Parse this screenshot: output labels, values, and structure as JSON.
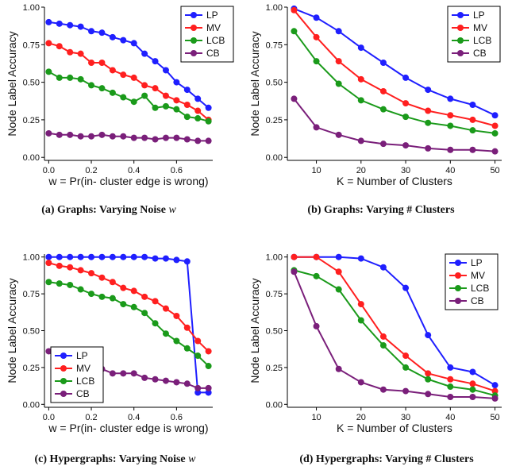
{
  "chart_data": [
    {
      "type": "line",
      "caption": "(a) Graphs: Varying Noise",
      "caption_var": "w",
      "xlabel": "w = Pr(in- cluster edge is wrong)",
      "ylabel": "Node Label Accuracy",
      "xlim": [
        -0.02,
        0.77
      ],
      "ylim": [
        -0.02,
        1.0
      ],
      "xticks": [
        0.0,
        0.2,
        0.4,
        0.6
      ],
      "xtick_labels": [
        "0.0",
        "0.2",
        "0.4",
        "0.6"
      ],
      "yticks": [
        0.0,
        0.25,
        0.5,
        0.75,
        1.0
      ],
      "ytick_labels": [
        "0.00",
        "0.25",
        "0.50",
        "0.75",
        "1.00"
      ],
      "legend_position": "top-right",
      "x": [
        0.0,
        0.05,
        0.1,
        0.15,
        0.2,
        0.25,
        0.3,
        0.35,
        0.4,
        0.45,
        0.5,
        0.55,
        0.6,
        0.65,
        0.7,
        0.75
      ],
      "series": [
        {
          "name": "LP",
          "color": "#1f1fff",
          "values": [
            0.9,
            0.89,
            0.88,
            0.87,
            0.84,
            0.83,
            0.8,
            0.78,
            0.76,
            0.69,
            0.64,
            0.58,
            0.5,
            0.45,
            0.39,
            0.33
          ]
        },
        {
          "name": "MV",
          "color": "#ff1f1f",
          "values": [
            0.76,
            0.74,
            0.7,
            0.69,
            0.63,
            0.63,
            0.58,
            0.55,
            0.53,
            0.48,
            0.46,
            0.41,
            0.38,
            0.35,
            0.31,
            0.25
          ]
        },
        {
          "name": "LCB",
          "color": "#1a9a1a",
          "values": [
            0.57,
            0.53,
            0.53,
            0.52,
            0.48,
            0.46,
            0.43,
            0.4,
            0.37,
            0.41,
            0.33,
            0.34,
            0.32,
            0.27,
            0.26,
            0.24
          ]
        },
        {
          "name": "CB",
          "color": "#7a1f7a",
          "values": [
            0.16,
            0.15,
            0.15,
            0.14,
            0.14,
            0.15,
            0.14,
            0.14,
            0.13,
            0.13,
            0.12,
            0.13,
            0.13,
            0.12,
            0.11,
            0.11
          ]
        }
      ]
    },
    {
      "type": "line",
      "caption": "(b) Graphs: Varying # Clusters",
      "caption_var": "",
      "xlabel": "K = Number of Clusters",
      "ylabel": "Node Label Accuracy",
      "xlim": [
        3.5,
        51.5
      ],
      "ylim": [
        -0.02,
        1.0
      ],
      "xticks": [
        10,
        20,
        30,
        40,
        50
      ],
      "xtick_labels": [
        "10",
        "20",
        "30",
        "40",
        "50"
      ],
      "yticks": [
        0.0,
        0.25,
        0.5,
        0.75,
        1.0
      ],
      "ytick_labels": [
        "0.00",
        "0.25",
        "0.50",
        "0.75",
        "1.00"
      ],
      "legend_position": "top-right",
      "x": [
        5,
        10,
        15,
        20,
        25,
        30,
        35,
        40,
        45,
        50
      ],
      "series": [
        {
          "name": "LP",
          "color": "#1f1fff",
          "values": [
            0.99,
            0.93,
            0.84,
            0.73,
            0.63,
            0.53,
            0.45,
            0.39,
            0.35,
            0.28
          ]
        },
        {
          "name": "MV",
          "color": "#ff1f1f",
          "values": [
            0.98,
            0.8,
            0.64,
            0.52,
            0.44,
            0.36,
            0.31,
            0.28,
            0.25,
            0.21
          ]
        },
        {
          "name": "LCB",
          "color": "#1a9a1a",
          "values": [
            0.84,
            0.64,
            0.49,
            0.38,
            0.32,
            0.27,
            0.23,
            0.21,
            0.18,
            0.16
          ]
        },
        {
          "name": "CB",
          "color": "#7a1f7a",
          "values": [
            0.39,
            0.2,
            0.15,
            0.11,
            0.09,
            0.08,
            0.06,
            0.05,
            0.05,
            0.04
          ]
        }
      ]
    },
    {
      "type": "line",
      "caption": "(c) Hypergraphs: Varying Noise",
      "caption_var": "w",
      "xlabel": "w = Pr(in- cluster edge is wrong)",
      "ylabel": "Node Label Accuracy",
      "xlim": [
        -0.02,
        0.77
      ],
      "ylim": [
        -0.02,
        1.02
      ],
      "xticks": [
        0.0,
        0.2,
        0.4,
        0.6
      ],
      "xtick_labels": [
        "0.0",
        "0.2",
        "0.4",
        "0.6"
      ],
      "yticks": [
        0.0,
        0.25,
        0.5,
        0.75,
        1.0
      ],
      "ytick_labels": [
        "0.00",
        "0.25",
        "0.50",
        "0.75",
        "1.00"
      ],
      "legend_position": "bottom-left",
      "x": [
        0.0,
        0.05,
        0.1,
        0.15,
        0.2,
        0.25,
        0.3,
        0.35,
        0.4,
        0.45,
        0.5,
        0.55,
        0.6,
        0.65,
        0.7,
        0.75
      ],
      "series": [
        {
          "name": "LP",
          "color": "#1f1fff",
          "values": [
            1.0,
            1.0,
            1.0,
            1.0,
            1.0,
            1.0,
            1.0,
            1.0,
            1.0,
            1.0,
            0.99,
            0.99,
            0.98,
            0.97,
            0.08,
            0.08
          ]
        },
        {
          "name": "MV",
          "color": "#ff1f1f",
          "values": [
            0.96,
            0.94,
            0.93,
            0.91,
            0.89,
            0.86,
            0.83,
            0.79,
            0.77,
            0.73,
            0.7,
            0.65,
            0.6,
            0.52,
            0.43,
            0.36
          ]
        },
        {
          "name": "LCB",
          "color": "#1a9a1a",
          "values": [
            0.83,
            0.82,
            0.81,
            0.78,
            0.75,
            0.73,
            0.72,
            0.68,
            0.66,
            0.62,
            0.55,
            0.48,
            0.43,
            0.38,
            0.33,
            0.26
          ]
        },
        {
          "name": "CB",
          "color": "#7a1f7a",
          "values": [
            0.36,
            0.31,
            0.28,
            0.26,
            0.27,
            0.24,
            0.21,
            0.21,
            0.21,
            0.18,
            0.17,
            0.16,
            0.15,
            0.14,
            0.11,
            0.11
          ]
        }
      ]
    },
    {
      "type": "line",
      "caption": "(d) Hypergraphs: Varying # Clusters",
      "caption_var": "",
      "xlabel": "K = Number of Clusters",
      "ylabel": "Node Label Accuracy",
      "xlim": [
        3.5,
        51.5
      ],
      "ylim": [
        -0.02,
        1.02
      ],
      "xticks": [
        10,
        20,
        30,
        40,
        50
      ],
      "xtick_labels": [
        "10",
        "20",
        "30",
        "40",
        "50"
      ],
      "yticks": [
        0.0,
        0.25,
        0.5,
        0.75,
        1.0
      ],
      "ytick_labels": [
        "0.00",
        "0.25",
        "0.50",
        "0.75",
        "1.00"
      ],
      "legend_position": "top-right",
      "x": [
        5,
        10,
        15,
        20,
        25,
        30,
        35,
        40,
        45,
        50
      ],
      "series": [
        {
          "name": "LP",
          "color": "#1f1fff",
          "values": [
            1.0,
            1.0,
            1.0,
            0.99,
            0.93,
            0.79,
            0.47,
            0.25,
            0.22,
            0.13
          ]
        },
        {
          "name": "MV",
          "color": "#ff1f1f",
          "values": [
            1.0,
            1.0,
            0.9,
            0.68,
            0.46,
            0.33,
            0.21,
            0.17,
            0.14,
            0.09
          ]
        },
        {
          "name": "LCB",
          "color": "#1a9a1a",
          "values": [
            0.91,
            0.87,
            0.78,
            0.57,
            0.4,
            0.25,
            0.17,
            0.12,
            0.1,
            0.06
          ]
        },
        {
          "name": "CB",
          "color": "#7a1f7a",
          "values": [
            0.9,
            0.53,
            0.24,
            0.15,
            0.1,
            0.09,
            0.07,
            0.05,
            0.05,
            0.04
          ]
        }
      ]
    }
  ]
}
